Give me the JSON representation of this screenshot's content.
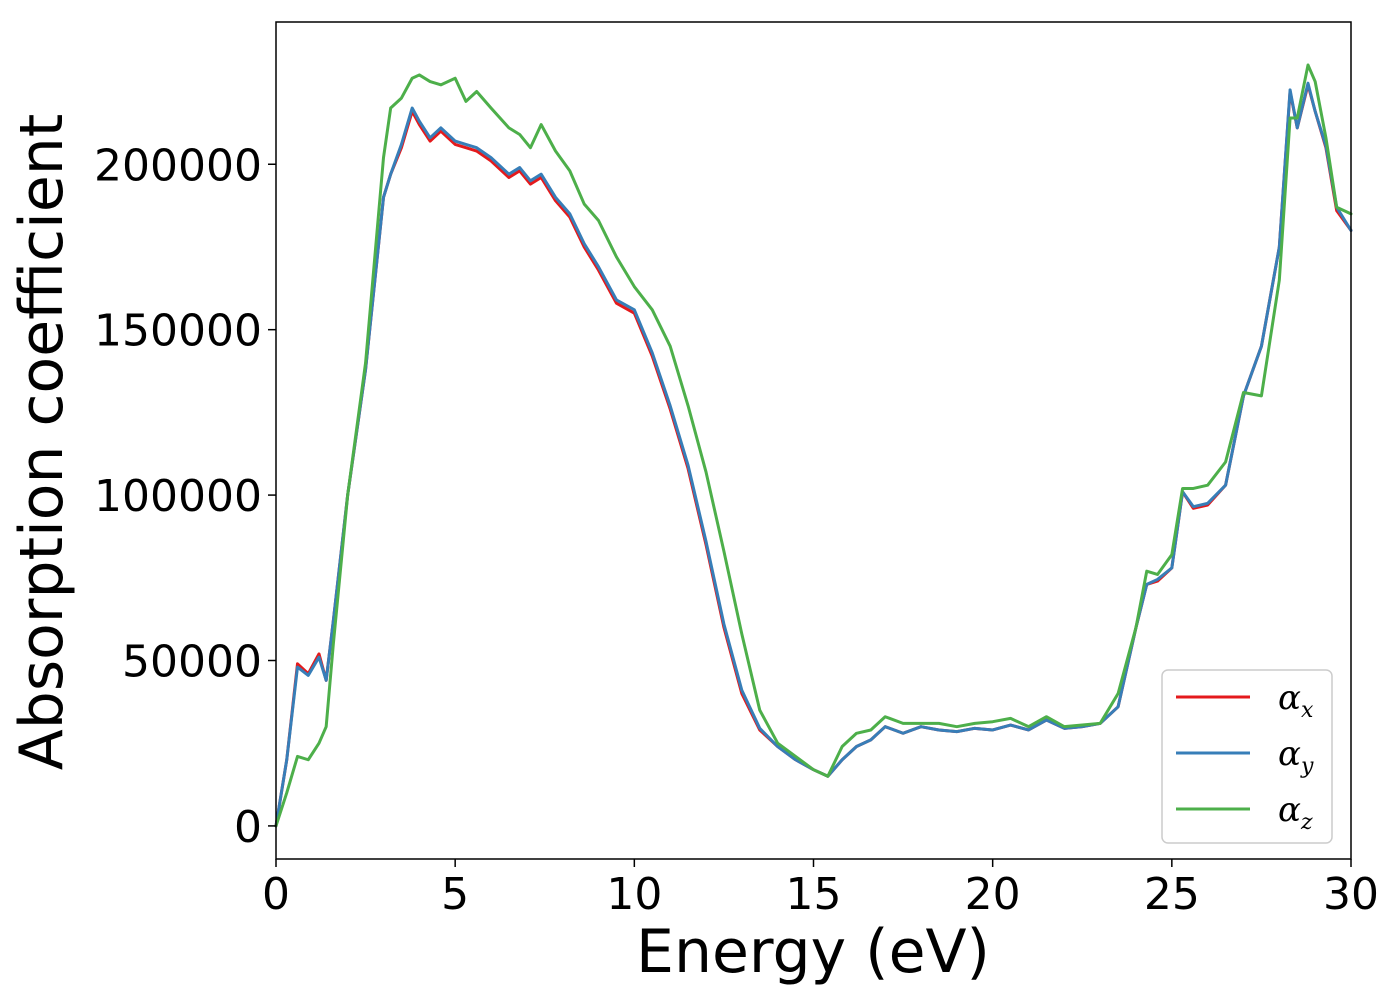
{
  "chart_data": {
    "type": "line",
    "xlabel": "Energy (eV)",
    "ylabel": "Absorption coefficient",
    "xlim": [
      0,
      30
    ],
    "ylim": [
      -10000,
      243000
    ],
    "xticks": [
      0,
      5,
      10,
      15,
      20,
      25,
      30
    ],
    "yticks": [
      0,
      50000,
      100000,
      150000,
      200000
    ],
    "grid": false,
    "legend_position": "lower-right",
    "series": [
      {
        "name": "α",
        "subscript": "x",
        "color": "#e41a1c",
        "x": [
          0,
          0.3,
          0.6,
          0.9,
          1.2,
          1.4,
          1.6,
          2.0,
          2.5,
          3.0,
          3.2,
          3.5,
          3.8,
          4.0,
          4.3,
          4.6,
          5.0,
          5.3,
          5.6,
          6.0,
          6.5,
          6.8,
          7.1,
          7.4,
          7.8,
          8.2,
          8.6,
          9.0,
          9.5,
          10.0,
          10.5,
          11.0,
          11.5,
          12.0,
          12.5,
          13.0,
          13.5,
          14.0,
          14.5,
          15.0,
          15.4,
          15.8,
          16.2,
          16.6,
          17.0,
          17.5,
          18.0,
          18.5,
          19.0,
          19.5,
          20.0,
          20.5,
          21.0,
          21.5,
          22.0,
          22.5,
          23.0,
          23.5,
          24.0,
          24.3,
          24.6,
          25.0,
          25.3,
          25.6,
          26.0,
          26.5,
          27.0,
          27.5,
          28.0,
          28.3,
          28.5,
          28.8,
          29.0,
          29.3,
          29.6,
          30.0
        ],
        "values": [
          0,
          20000,
          49000,
          46000,
          52000,
          44000,
          62000,
          100000,
          138000,
          190000,
          197000,
          205000,
          216000,
          212000,
          207000,
          210000,
          206000,
          205000,
          204000,
          201000,
          196000,
          198000,
          194000,
          196000,
          189000,
          184000,
          175000,
          168000,
          158000,
          155000,
          142000,
          126000,
          108000,
          85000,
          60000,
          40000,
          29000,
          24000,
          20000,
          17000,
          15000,
          20000,
          24000,
          26000,
          30000,
          28000,
          30000,
          29000,
          28500,
          29500,
          29000,
          30500,
          29000,
          32000,
          29500,
          30000,
          31000,
          36000,
          60000,
          73000,
          74000,
          78000,
          101000,
          96000,
          97000,
          103000,
          130000,
          145000,
          175000,
          222000,
          211000,
          224000,
          216000,
          205000,
          186000,
          180000
        ]
      },
      {
        "name": "α",
        "subscript": "y",
        "color": "#377eb8",
        "x": [
          0,
          0.3,
          0.6,
          0.9,
          1.2,
          1.4,
          1.6,
          2.0,
          2.5,
          3.0,
          3.2,
          3.5,
          3.8,
          4.0,
          4.3,
          4.6,
          5.0,
          5.3,
          5.6,
          6.0,
          6.5,
          6.8,
          7.1,
          7.4,
          7.8,
          8.2,
          8.6,
          9.0,
          9.5,
          10.0,
          10.5,
          11.0,
          11.5,
          12.0,
          12.5,
          13.0,
          13.5,
          14.0,
          14.5,
          15.0,
          15.4,
          15.8,
          16.2,
          16.6,
          17.0,
          17.5,
          18.0,
          18.5,
          19.0,
          19.5,
          20.0,
          20.5,
          21.0,
          21.5,
          22.0,
          22.5,
          23.0,
          23.5,
          24.0,
          24.3,
          24.6,
          25.0,
          25.3,
          25.6,
          26.0,
          26.5,
          27.0,
          27.5,
          28.0,
          28.3,
          28.5,
          28.8,
          29.0,
          29.3,
          29.6,
          30.0
        ],
        "values": [
          0,
          20000,
          48000,
          45500,
          51000,
          44000,
          62000,
          100000,
          138000,
          190000,
          197000,
          206000,
          217000,
          213000,
          208000,
          211000,
          207000,
          206000,
          205000,
          202000,
          197000,
          199000,
          195000,
          197000,
          190000,
          185000,
          176000,
          169000,
          159000,
          156000,
          143000,
          127000,
          109000,
          86000,
          61000,
          41000,
          29500,
          24000,
          20000,
          17000,
          15000,
          20000,
          24000,
          26000,
          30000,
          28000,
          30000,
          29000,
          28500,
          29500,
          29000,
          30500,
          29000,
          32000,
          29500,
          30000,
          31000,
          36000,
          60000,
          73000,
          74500,
          78000,
          101000,
          96500,
          97500,
          103000,
          130000,
          145000,
          175000,
          222500,
          211000,
          224500,
          216000,
          205500,
          187000,
          180000
        ]
      },
      {
        "name": "α",
        "subscript": "z",
        "color": "#4daf4a",
        "x": [
          0,
          0.3,
          0.6,
          0.9,
          1.2,
          1.4,
          1.6,
          2.0,
          2.5,
          3.0,
          3.2,
          3.5,
          3.8,
          4.0,
          4.3,
          4.6,
          5.0,
          5.3,
          5.6,
          6.0,
          6.5,
          6.8,
          7.1,
          7.4,
          7.8,
          8.2,
          8.6,
          9.0,
          9.5,
          10.0,
          10.5,
          11.0,
          11.5,
          12.0,
          12.5,
          13.0,
          13.5,
          14.0,
          14.5,
          15.0,
          15.4,
          15.8,
          16.2,
          16.6,
          17.0,
          17.5,
          18.0,
          18.5,
          19.0,
          19.5,
          20.0,
          20.5,
          21.0,
          21.5,
          22.0,
          22.5,
          23.0,
          23.5,
          24.0,
          24.3,
          24.6,
          25.0,
          25.3,
          25.6,
          26.0,
          26.5,
          27.0,
          27.5,
          28.0,
          28.3,
          28.5,
          28.8,
          29.0,
          29.3,
          29.6,
          30.0
        ],
        "values": [
          0,
          10000,
          21000,
          20000,
          25000,
          30000,
          55000,
          100000,
          140000,
          202000,
          217000,
          220000,
          226000,
          227000,
          225000,
          224000,
          226000,
          219000,
          222000,
          217000,
          211000,
          209000,
          205000,
          212000,
          204000,
          198000,
          188000,
          183000,
          172000,
          163000,
          156000,
          145000,
          127000,
          107000,
          83000,
          58000,
          35000,
          25000,
          21000,
          17000,
          15000,
          24000,
          28000,
          29000,
          33000,
          31000,
          31000,
          31000,
          30000,
          31000,
          31500,
          32500,
          30000,
          33000,
          30000,
          30500,
          31000,
          40000,
          60000,
          77000,
          76000,
          82000,
          102000,
          102000,
          103000,
          110000,
          131000,
          130000,
          165000,
          214000,
          214000,
          230000,
          225000,
          208000,
          187000,
          185000
        ]
      }
    ]
  }
}
